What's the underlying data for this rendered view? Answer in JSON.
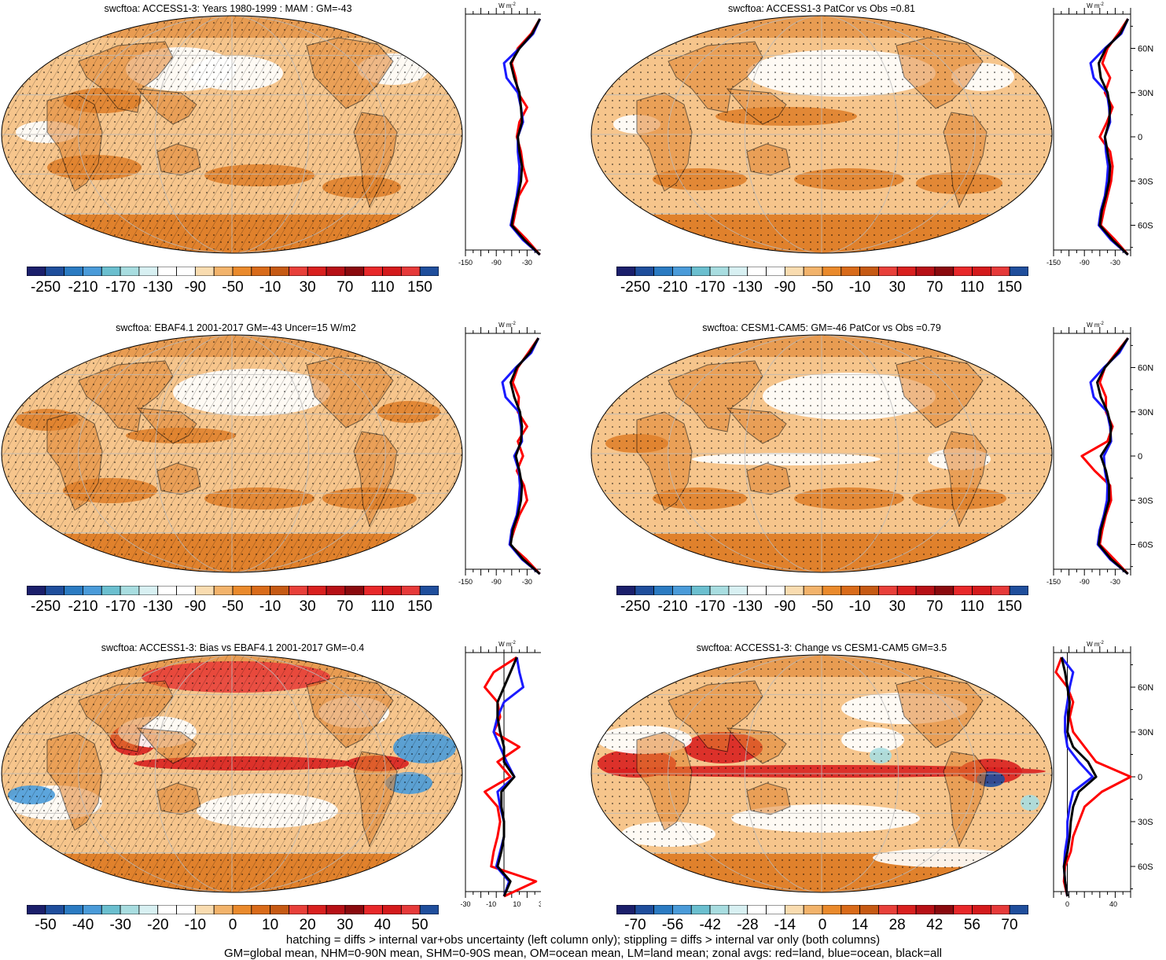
{
  "panels": [
    {
      "id": "p1",
      "title": "swcftoa: ACCESS1-3: Years 1980-1999 : MAM : GM=-43",
      "hatching": true,
      "colorbar": {
        "labels": [
          "-250",
          "-210",
          "-170",
          "-130",
          "-90",
          "-50",
          "-10",
          "30",
          "70",
          "110",
          "150"
        ]
      },
      "zonal": {
        "unit": "W m",
        "unit_exp": "-2",
        "xticks": [
          "-150",
          "-90",
          "-30"
        ],
        "xlim": [
          -150,
          0
        ]
      }
    },
    {
      "id": "p2",
      "title": "swcftoa: ACCESS1-3 PatCor vs Obs =0.81",
      "hatching": false,
      "colorbar": {
        "labels": [
          "-250",
          "-210",
          "-170",
          "-130",
          "-90",
          "-50",
          "-10",
          "30",
          "70",
          "110",
          "150"
        ]
      },
      "zonal": {
        "unit": "W m",
        "unit_exp": "-2",
        "xticks": [
          "-150",
          "-90",
          "-30"
        ],
        "xlim": [
          -150,
          0
        ]
      }
    },
    {
      "id": "p3",
      "title": "swcftoa: EBAF4.1 2001-2017 GM=-43 Uncer=15 W/m2",
      "hatching": true,
      "colorbar": {
        "labels": [
          "-250",
          "-210",
          "-170",
          "-130",
          "-90",
          "-50",
          "-10",
          "30",
          "70",
          "110",
          "150"
        ]
      },
      "zonal": {
        "unit": "W m",
        "unit_exp": "-2",
        "xticks": [
          "-150",
          "-90",
          "-30"
        ],
        "xlim": [
          -150,
          0
        ]
      }
    },
    {
      "id": "p4",
      "title": "swcftoa: CESM1-CAM5: GM=-46 PatCor vs Obs =0.79",
      "hatching": false,
      "colorbar": {
        "labels": [
          "-250",
          "-210",
          "-170",
          "-130",
          "-90",
          "-50",
          "-10",
          "30",
          "70",
          "110",
          "150"
        ]
      },
      "zonal": {
        "unit": "W m",
        "unit_exp": "-2",
        "xticks": [
          "-150",
          "-90",
          "-30"
        ],
        "xlim": [
          -150,
          0
        ]
      }
    },
    {
      "id": "p5",
      "title": "swcftoa: ACCESS1-3: Bias vs EBAF4.1 2001-2017 GM=-0.4",
      "hatching": true,
      "colorbar": {
        "labels": [
          "-50",
          "-40",
          "-30",
          "-20",
          "-10",
          "0",
          "10",
          "20",
          "30",
          "40",
          "50"
        ]
      },
      "zonal": {
        "unit": "W m",
        "unit_exp": "-2",
        "xticks": [
          "-30",
          "-10",
          "10",
          "30"
        ],
        "xlim": [
          -30,
          30
        ]
      }
    },
    {
      "id": "p6",
      "title": "swcftoa: ACCESS1-3: Change vs CESM1-CAM5 GM=3.5",
      "hatching": false,
      "colorbar": {
        "labels": [
          "-70",
          "-56",
          "-42",
          "-28",
          "-14",
          "0",
          "14",
          "28",
          "42",
          "56",
          "70"
        ]
      },
      "zonal": {
        "unit": "W m",
        "unit_exp": "-2",
        "xticks": [
          "0",
          "40"
        ],
        "xlim": [
          -12,
          55
        ]
      }
    }
  ],
  "lat_ticks": [
    "60N",
    "30N",
    "0",
    "30S",
    "60S"
  ],
  "colors": {
    "diverging": [
      "#1b1f6b",
      "#1f4e9c",
      "#2b7bc2",
      "#4a9bd9",
      "#6bbfcf",
      "#a8dde0",
      "#d8f0f2",
      "#ffffff",
      "#ffffff",
      "#f9dcb0",
      "#f2b36b",
      "#ea8a2c",
      "#d96b1a",
      "#c65a14",
      "#e8403a",
      "#d9201f",
      "#b71016",
      "#8a0a0e",
      "#e8282a",
      "#d41a1c",
      "#e63a3a",
      "#1f4e9c"
    ],
    "land": "#e0812c",
    "ocean_light": "#f6c58c",
    "stipple": "#000000",
    "line_all": "#000000",
    "line_land": "#ff0000",
    "line_ocean": "#1a1aff"
  },
  "footnote": {
    "line1": "hatching = diffs > internal var+obs uncertainty (left column only); stippling = diffs > internal var only (both columns)",
    "line2": "GM=global mean, NHM=0-90N mean, SHM=0-90S mean, OM=ocean mean, LM=land mean; zonal avgs: red=land, blue=ocean, black=all"
  },
  "chart_data": [
    {
      "type": "heatmap",
      "title": "swcftoa: ACCESS1-3: Years 1980-1999 : MAM : GM=-43",
      "colorbar_ticks": [
        -250,
        -210,
        -170,
        -130,
        -90,
        -50,
        -10,
        30,
        70,
        110,
        150
      ],
      "zonal_mean": {
        "lat": [
          80,
          70,
          60,
          50,
          40,
          30,
          20,
          10,
          0,
          -10,
          -20,
          -30,
          -40,
          -50,
          -60,
          -70,
          -80
        ],
        "all": [
          -5,
          -20,
          -45,
          -62,
          -55,
          -45,
          -42,
          -40,
          -48,
          -45,
          -40,
          -42,
          -48,
          -55,
          -60,
          -35,
          -5
        ],
        "land": [
          -5,
          -22,
          -48,
          -60,
          -52,
          -48,
          -30,
          -45,
          -50,
          -42,
          -38,
          -30,
          -46,
          -52,
          -58,
          -30,
          -5
        ],
        "ocean": [
          -5,
          -18,
          -45,
          -75,
          -70,
          -48,
          -42,
          -38,
          -48,
          -48,
          -45,
          -46,
          -50,
          -56,
          -62,
          -38,
          -5
        ]
      }
    },
    {
      "type": "heatmap",
      "title": "swcftoa: ACCESS1-3 PatCor vs Obs =0.81",
      "colorbar_ticks": [
        -250,
        -210,
        -170,
        -130,
        -90,
        -50,
        -10,
        30,
        70,
        110,
        150
      ],
      "zonal_mean": {
        "lat": [
          80,
          70,
          60,
          50,
          40,
          30,
          20,
          10,
          0,
          -10,
          -20,
          -30,
          -40,
          -50,
          -60,
          -70,
          -80
        ],
        "all": [
          -5,
          -20,
          -48,
          -62,
          -58,
          -45,
          -40,
          -42,
          -50,
          -45,
          -40,
          -42,
          -48,
          -56,
          -60,
          -35,
          -5
        ],
        "land": [
          -5,
          -24,
          -45,
          -55,
          -40,
          -50,
          -35,
          -46,
          -60,
          -40,
          -35,
          -38,
          -45,
          -52,
          -58,
          -30,
          -5
        ],
        "ocean": [
          -5,
          -18,
          -50,
          -78,
          -72,
          -46,
          -42,
          -40,
          -50,
          -48,
          -44,
          -46,
          -50,
          -58,
          -62,
          -38,
          -5
        ]
      }
    },
    {
      "type": "heatmap",
      "title": "swcftoa: EBAF4.1 2001-2017 GM=-43 Uncer=15 W/m2",
      "colorbar_ticks": [
        -250,
        -210,
        -170,
        -130,
        -90,
        -50,
        -10,
        30,
        70,
        110,
        150
      ],
      "zonal_mean": {
        "lat": [
          80,
          70,
          60,
          50,
          40,
          30,
          20,
          10,
          0,
          -10,
          -20,
          -30,
          -40,
          -50,
          -60,
          -70,
          -80
        ],
        "all": [
          -8,
          -25,
          -50,
          -62,
          -55,
          -44,
          -40,
          -42,
          -52,
          -45,
          -40,
          -42,
          -48,
          -58,
          -62,
          -38,
          -5
        ],
        "land": [
          -8,
          -28,
          -48,
          -58,
          -46,
          -48,
          -30,
          -48,
          -38,
          -50,
          -36,
          -30,
          -45,
          -55,
          -64,
          -32,
          -5
        ],
        "ocean": [
          -8,
          -22,
          -52,
          -78,
          -72,
          -46,
          -42,
          -40,
          -55,
          -46,
          -44,
          -46,
          -50,
          -60,
          -64,
          -40,
          -5
        ]
      }
    },
    {
      "type": "heatmap",
      "title": "swcftoa: CESM1-CAM5: GM=-46 PatCor vs Obs =0.79",
      "colorbar_ticks": [
        -250,
        -210,
        -170,
        -130,
        -90,
        -50,
        -10,
        30,
        70,
        110,
        150
      ],
      "zonal_mean": {
        "lat": [
          80,
          70,
          60,
          50,
          40,
          30,
          20,
          10,
          0,
          -10,
          -20,
          -30,
          -40,
          -50,
          -60,
          -70,
          -80
        ],
        "all": [
          -5,
          -25,
          -50,
          -65,
          -58,
          -45,
          -38,
          -40,
          -58,
          -48,
          -42,
          -42,
          -50,
          -58,
          -62,
          -38,
          -5
        ],
        "land": [
          -5,
          -28,
          -50,
          -60,
          -48,
          -48,
          -35,
          -45,
          -95,
          -70,
          -40,
          -38,
          -48,
          -55,
          -60,
          -32,
          -5
        ],
        "ocean": [
          -5,
          -22,
          -52,
          -78,
          -72,
          -46,
          -40,
          -38,
          -52,
          -50,
          -45,
          -46,
          -52,
          -60,
          -64,
          -40,
          -5
        ]
      }
    },
    {
      "type": "heatmap",
      "title": "swcftoa: ACCESS1-3: Bias vs EBAF4.1 2001-2017 GM=-0.4",
      "colorbar_ticks": [
        -50,
        -40,
        -30,
        -20,
        -10,
        0,
        10,
        20,
        30,
        40,
        50
      ],
      "zonal_mean": {
        "lat": [
          80,
          70,
          60,
          50,
          40,
          30,
          20,
          10,
          0,
          -10,
          -20,
          -30,
          -40,
          -50,
          -60,
          -70,
          -80
        ],
        "all": [
          10,
          5,
          0,
          -5,
          -5,
          -3,
          0,
          0,
          8,
          -2,
          -2,
          0,
          0,
          -2,
          -5,
          5,
          0
        ],
        "land": [
          10,
          -8,
          -15,
          -5,
          -3,
          -8,
          12,
          -5,
          5,
          -15,
          -5,
          -3,
          -5,
          -8,
          -10,
          25,
          0
        ],
        "ocean": [
          10,
          12,
          15,
          0,
          -5,
          -8,
          -3,
          2,
          8,
          -5,
          -3,
          0,
          0,
          -3,
          -6,
          4,
          0
        ]
      }
    },
    {
      "type": "heatmap",
      "title": "swcftoa: ACCESS1-3: Change vs CESM1-CAM5 GM=3.5",
      "colorbar_ticks": [
        -70,
        -56,
        -42,
        -28,
        -14,
        0,
        14,
        28,
        42,
        56,
        70
      ],
      "zonal_mean": {
        "lat": [
          80,
          70,
          60,
          50,
          40,
          30,
          20,
          10,
          0,
          -10,
          -20,
          -30,
          -40,
          -50,
          -60,
          -70,
          -80
        ],
        "all": [
          -5,
          -2,
          0,
          2,
          1,
          0,
          5,
          18,
          25,
          10,
          5,
          3,
          2,
          0,
          -3,
          -2,
          0
        ],
        "land": [
          -5,
          -10,
          0,
          5,
          2,
          5,
          15,
          25,
          55,
          30,
          15,
          10,
          5,
          3,
          -2,
          -3,
          0
        ],
        "ocean": [
          -5,
          5,
          2,
          0,
          -2,
          -2,
          0,
          10,
          22,
          5,
          2,
          0,
          0,
          -2,
          -3,
          -2,
          0
        ]
      }
    }
  ]
}
